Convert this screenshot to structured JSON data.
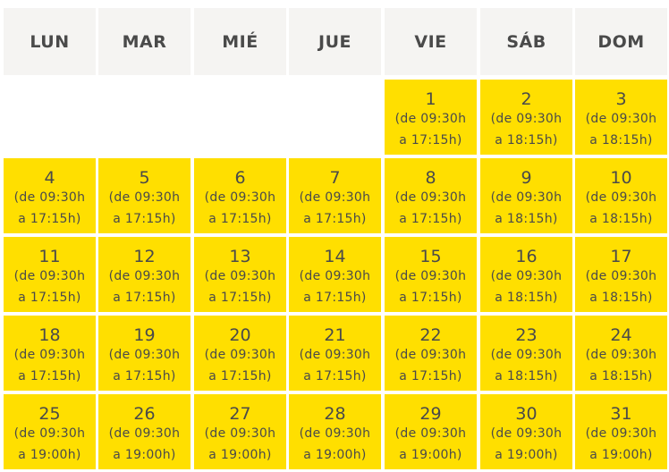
{
  "weekdays": [
    "LUN",
    "MAR",
    "MIÉ",
    "JUE",
    "VIE",
    "SÁB",
    "DOM"
  ],
  "start_offset": 4,
  "days": [
    {
      "day": "1",
      "line1": "(de 09:30h",
      "line2": "a 17:15h)"
    },
    {
      "day": "2",
      "line1": "(de 09:30h",
      "line2": "a 18:15h)"
    },
    {
      "day": "3",
      "line1": "(de 09:30h",
      "line2": "a 18:15h)"
    },
    {
      "day": "4",
      "line1": "(de 09:30h",
      "line2": "a 17:15h)"
    },
    {
      "day": "5",
      "line1": "(de 09:30h",
      "line2": "a 17:15h)"
    },
    {
      "day": "6",
      "line1": "(de 09:30h",
      "line2": "a 17:15h)"
    },
    {
      "day": "7",
      "line1": "(de 09:30h",
      "line2": "a 17:15h)"
    },
    {
      "day": "8",
      "line1": "(de 09:30h",
      "line2": "a 17:15h)"
    },
    {
      "day": "9",
      "line1": "(de 09:30h",
      "line2": "a 18:15h)"
    },
    {
      "day": "10",
      "line1": "(de 09:30h",
      "line2": "a 18:15h)"
    },
    {
      "day": "11",
      "line1": "(de 09:30h",
      "line2": "a 17:15h)"
    },
    {
      "day": "12",
      "line1": "(de 09:30h",
      "line2": "a 17:15h)"
    },
    {
      "day": "13",
      "line1": "(de 09:30h",
      "line2": "a 17:15h)"
    },
    {
      "day": "14",
      "line1": "(de 09:30h",
      "line2": "a 17:15h)"
    },
    {
      "day": "15",
      "line1": "(de 09:30h",
      "line2": "a 17:15h)"
    },
    {
      "day": "16",
      "line1": "(de 09:30h",
      "line2": "a 18:15h)"
    },
    {
      "day": "17",
      "line1": "(de 09:30h",
      "line2": "a 18:15h)"
    },
    {
      "day": "18",
      "line1": "(de 09:30h",
      "line2": "a 17:15h)"
    },
    {
      "day": "19",
      "line1": "(de 09:30h",
      "line2": "a 17:15h)"
    },
    {
      "day": "20",
      "line1": "(de 09:30h",
      "line2": "a 17:15h)"
    },
    {
      "day": "21",
      "line1": "(de 09:30h",
      "line2": "a 17:15h)"
    },
    {
      "day": "22",
      "line1": "(de 09:30h",
      "line2": "a 17:15h)"
    },
    {
      "day": "23",
      "line1": "(de 09:30h",
      "line2": "a 18:15h)"
    },
    {
      "day": "24",
      "line1": "(de 09:30h",
      "line2": "a 18:15h)"
    },
    {
      "day": "25",
      "line1": "(de 09:30h",
      "line2": "a 19:00h)"
    },
    {
      "day": "26",
      "line1": "(de 09:30h",
      "line2": "a 19:00h)"
    },
    {
      "day": "27",
      "line1": "(de 09:30h",
      "line2": "a 19:00h)"
    },
    {
      "day": "28",
      "line1": "(de 09:30h",
      "line2": "a 19:00h)"
    },
    {
      "day": "29",
      "line1": "(de 09:30h",
      "line2": "a 19:00h)"
    },
    {
      "day": "30",
      "line1": "(de 09:30h",
      "line2": "a 19:00h)"
    },
    {
      "day": "31",
      "line1": "(de 09:30h",
      "line2": "a 19:00h)"
    }
  ],
  "colors": {
    "header_bg": "#f5f4f2",
    "day_bg": "#ffdf00",
    "text": "#4a4a4a"
  }
}
